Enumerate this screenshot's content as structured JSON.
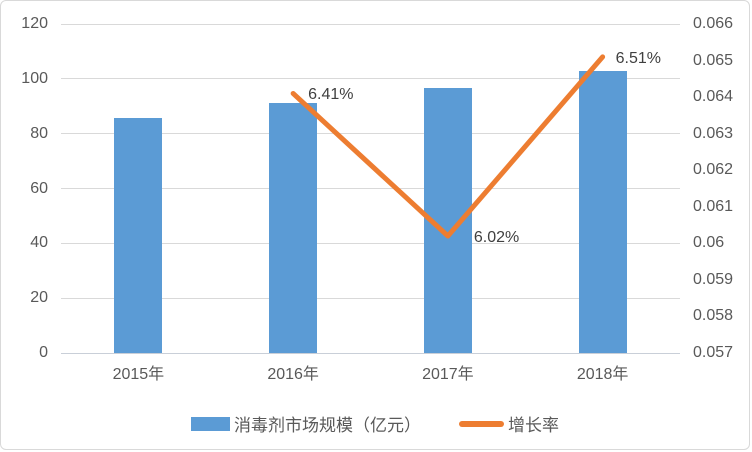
{
  "chart_data": {
    "type": "combo",
    "categories": [
      "2015年",
      "2016年",
      "2017年",
      "2018年"
    ],
    "series": [
      {
        "name": "消毒剂市场规模（亿元）",
        "type": "bar",
        "axis": "left",
        "color": "#5b9bd5",
        "values": [
          85.6,
          91.1,
          96.6,
          102.9
        ]
      },
      {
        "name": "增长率",
        "type": "line",
        "axis": "right",
        "color": "#ed7d31",
        "values": [
          null,
          0.0641,
          0.0602,
          0.0651
        ],
        "point_labels": [
          "",
          "6.41%",
          "6.02%",
          "6.51%"
        ]
      }
    ],
    "left_axis": {
      "min": 0,
      "max": 120,
      "step": 20,
      "ticks": [
        "0",
        "20",
        "40",
        "60",
        "80",
        "100",
        "120"
      ]
    },
    "right_axis": {
      "min": 0.057,
      "max": 0.066,
      "step": 0.001,
      "ticks": [
        "0.057",
        "0.058",
        "0.059",
        "0.06",
        "0.061",
        "0.062",
        "0.063",
        "0.064",
        "0.065",
        "0.066"
      ]
    },
    "grid": true,
    "legend_position": "bottom",
    "title": ""
  },
  "legend": {
    "items": [
      {
        "label": "消毒剂市场规模（亿元）",
        "swatch": "bar",
        "color": "#5b9bd5"
      },
      {
        "label": "增长率",
        "swatch": "line",
        "color": "#ed7d31"
      }
    ]
  },
  "style": {
    "bar_color": "#5b9bd5",
    "line_color": "#ed7d31",
    "grid_color": "#d9d9d9",
    "tick_text_color": "#595959",
    "data_label_color": "#404040",
    "frame_border_color": "#d9d9d9",
    "background": "#ffffff"
  }
}
